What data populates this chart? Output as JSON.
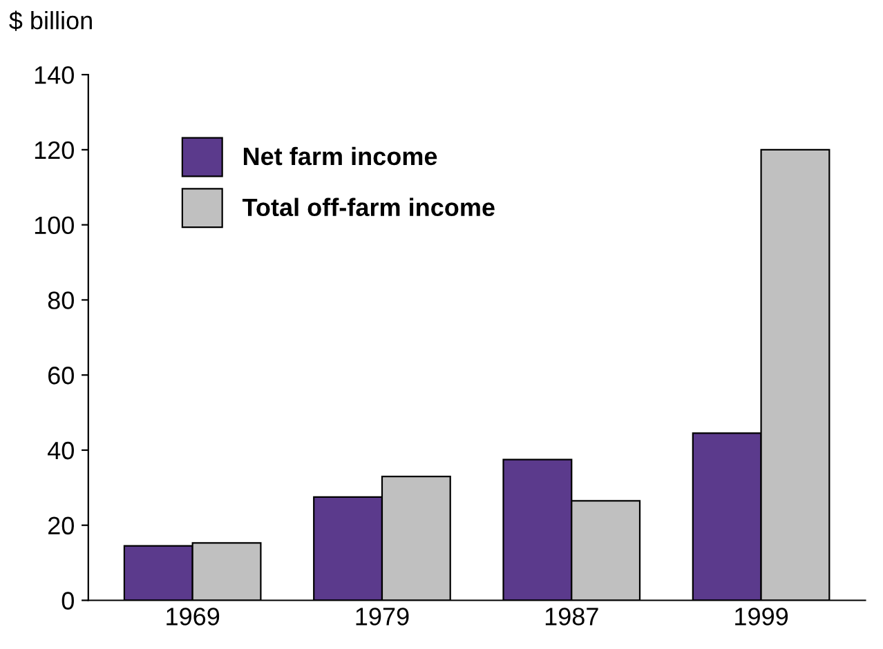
{
  "chart_data": {
    "type": "bar",
    "ylabel": "$ billion",
    "categories": [
      "1969",
      "1979",
      "1987",
      "1999"
    ],
    "series": [
      {
        "name": "Net farm income",
        "color": "#5b3a8c",
        "values": [
          14.5,
          27.5,
          37.5,
          44.5
        ]
      },
      {
        "name": "Total off-farm income",
        "color": "#c0c0c0",
        "values": [
          15.3,
          33,
          26.5,
          120
        ]
      }
    ],
    "ylim": [
      0,
      140
    ],
    "yticks": [
      0,
      20,
      40,
      60,
      80,
      100,
      120,
      140
    ],
    "grid": false,
    "legend": "top left"
  }
}
